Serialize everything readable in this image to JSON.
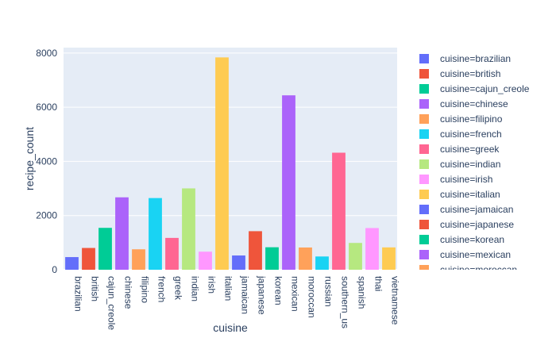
{
  "chart_data": {
    "type": "bar",
    "xlabel": "cuisine",
    "ylabel": "recipe_count",
    "ylim": [
      0,
      8200
    ],
    "y_ticks": [
      0,
      2000,
      4000,
      6000,
      8000
    ],
    "grid": true,
    "legend_position": "right",
    "legend_prefix": "cuisine=",
    "categories": [
      "brazilian",
      "british",
      "cajun_creole",
      "chinese",
      "filipino",
      "french",
      "greek",
      "indian",
      "irish",
      "italian",
      "jamaican",
      "japanese",
      "korean",
      "mexican",
      "moroccan",
      "russian",
      "southern_us",
      "spanish",
      "thai",
      "vietnamese"
    ],
    "values": [
      467,
      804,
      1546,
      2673,
      755,
      2646,
      1175,
      3003,
      667,
      7838,
      526,
      1423,
      830,
      6438,
      821,
      489,
      4320,
      989,
      1539,
      825
    ],
    "colors": [
      "#636efa",
      "#EF553B",
      "#00cc96",
      "#ab63fa",
      "#FFA15A",
      "#19d3f3",
      "#FF6692",
      "#B6E880",
      "#FF97FF",
      "#FECB52",
      "#636efa",
      "#EF553B",
      "#00cc96",
      "#ab63fa",
      "#FFA15A",
      "#19d3f3",
      "#FF6692",
      "#B6E880",
      "#FF97FF",
      "#FECB52"
    ]
  }
}
